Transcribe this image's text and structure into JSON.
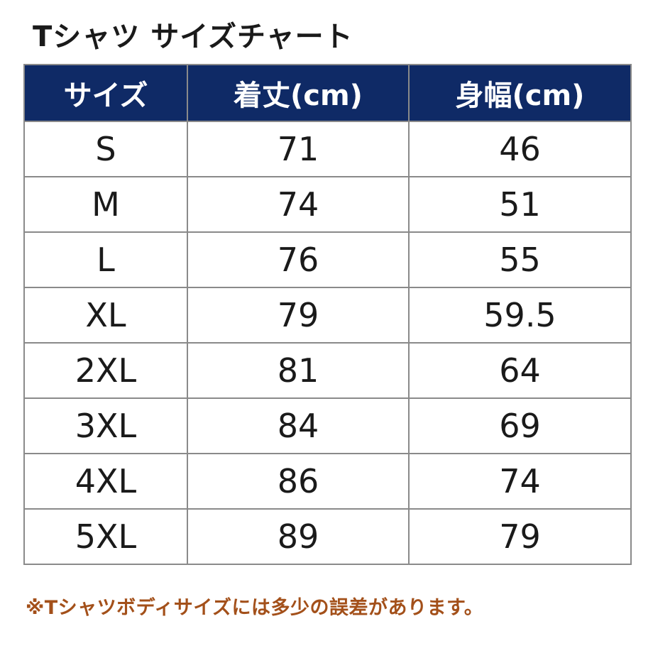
{
  "title": "Tシャツ サイズチャート",
  "table": {
    "headers": [
      "サイズ",
      "着丈(cm)",
      "身幅(cm)"
    ],
    "rows": [
      {
        "size": "S",
        "length": "71",
        "width": "46"
      },
      {
        "size": "M",
        "length": "74",
        "width": "51"
      },
      {
        "size": "L",
        "length": "76",
        "width": "55"
      },
      {
        "size": "XL",
        "length": "79",
        "width": "59.5"
      },
      {
        "size": "2XL",
        "length": "81",
        "width": "64"
      },
      {
        "size": "3XL",
        "length": "84",
        "width": "69"
      },
      {
        "size": "4XL",
        "length": "86",
        "width": "74"
      },
      {
        "size": "5XL",
        "length": "89",
        "width": "79"
      }
    ]
  },
  "footnote": "※Tシャツボディサイズには多少の誤差があります。",
  "colors": {
    "header_bg": "#0f2a66",
    "header_text": "#ffffff",
    "footnote": "#a3501a",
    "border": "#8a8a8a"
  }
}
